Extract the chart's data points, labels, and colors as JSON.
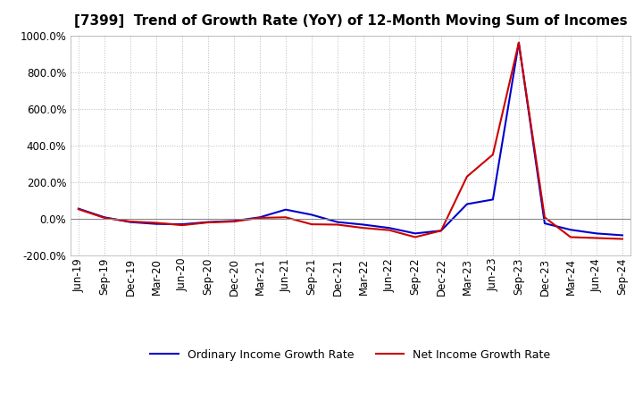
{
  "title": "[7399]  Trend of Growth Rate (YoY) of 12-Month Moving Sum of Incomes",
  "x_labels": [
    "Jun-19",
    "Sep-19",
    "Dec-19",
    "Mar-20",
    "Jun-20",
    "Sep-20",
    "Dec-20",
    "Mar-21",
    "Jun-21",
    "Sep-21",
    "Dec-21",
    "Mar-22",
    "Jun-22",
    "Sep-22",
    "Dec-22",
    "Mar-23",
    "Jun-23",
    "Sep-23",
    "Dec-23",
    "Mar-24",
    "Jun-24",
    "Sep-24"
  ],
  "ordinary_income": [
    55,
    8,
    -18,
    -28,
    -30,
    -18,
    -12,
    8,
    50,
    22,
    -18,
    -32,
    -50,
    -80,
    -65,
    80,
    105,
    960,
    -25,
    -60,
    -80,
    -90
  ],
  "net_income": [
    52,
    5,
    -15,
    -22,
    -35,
    -20,
    -15,
    5,
    8,
    -30,
    -32,
    -50,
    -62,
    -100,
    -65,
    230,
    350,
    960,
    8,
    -100,
    -105,
    -110
  ],
  "ylim": [
    -200,
    1000
  ],
  "yticks": [
    -200,
    0,
    200,
    400,
    600,
    800,
    1000
  ],
  "ordinary_color": "#0000cc",
  "net_color": "#cc0000",
  "background_color": "#ffffff",
  "grid_color": "#bbbbbb",
  "zero_line_color": "#888888",
  "legend_ordinary": "Ordinary Income Growth Rate",
  "legend_net": "Net Income Growth Rate",
  "title_fontsize": 11,
  "tick_fontsize": 8.5,
  "ytick_fontsize": 8.5,
  "line_width": 1.5
}
